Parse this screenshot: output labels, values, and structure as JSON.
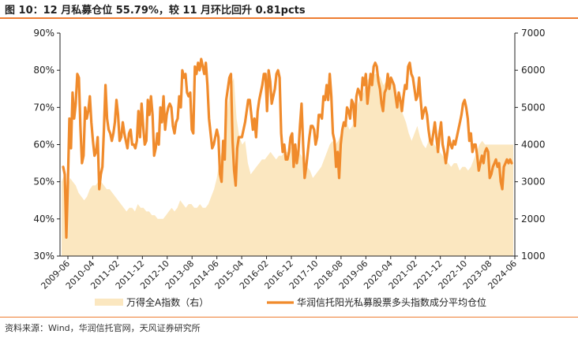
{
  "figure": {
    "title": "图 10：12 月私募仓位 55.79%，较 11 月环比回升 0.81pcts",
    "source": "资料来源：Wind，华润信托官网，天风证券研究所"
  },
  "colors": {
    "accent": "#ed7d31",
    "area_fill": "#fbe7c0",
    "line": "#f08b2c",
    "axis": "#222222"
  },
  "chart_data": {
    "type": "line",
    "x_tick_labels": [
      "2009-06",
      "2010-04",
      "2011-02",
      "2011-12",
      "2012-10",
      "2013-08",
      "2014-06",
      "2015-04",
      "2016-02",
      "2016-12",
      "2017-10",
      "2018-08",
      "2019-06",
      "2020-04",
      "2021-02",
      "2021-12",
      "2022-10",
      "2023-08",
      "2024-06"
    ],
    "left_axis": {
      "ticks": [
        "30%",
        "40%",
        "50%",
        "60%",
        "70%",
        "80%",
        "90%"
      ],
      "range": [
        30,
        90
      ],
      "unit": "%"
    },
    "right_axis": {
      "ticks": [
        "1000",
        "2000",
        "3000",
        "4000",
        "5000",
        "6000",
        "7000"
      ],
      "range": [
        1000,
        7000
      ]
    },
    "grid": false,
    "legend_position": "bottom",
    "series": [
      {
        "name": "万得全A指数（右）",
        "kind": "area",
        "axis": "right",
        "values": [
          3000,
          3200,
          2800,
          3100,
          3000,
          2900,
          2700,
          2600,
          2500,
          2600,
          2800,
          2900,
          2900,
          3000,
          3000,
          2900,
          2800,
          2800,
          2700,
          2600,
          2500,
          2400,
          2300,
          2200,
          2300,
          2300,
          2200,
          2400,
          2300,
          2300,
          2200,
          2200,
          2100,
          2100,
          2000,
          2000,
          2000,
          2100,
          2200,
          2300,
          2200,
          2300,
          2500,
          2400,
          2300,
          2400,
          2400,
          2300,
          2300,
          2400,
          2300,
          2300,
          2400,
          2600,
          2800,
          3100,
          3600,
          3900,
          4400,
          5100,
          5600,
          5800,
          4700,
          4200,
          4000,
          4100,
          3500,
          3200,
          3300,
          3400,
          3500,
          3600,
          3600,
          3700,
          3800,
          3700,
          3600,
          3700,
          3700,
          3800,
          3800,
          3900,
          4000,
          3900,
          3800,
          3700,
          3500,
          3400,
          3300,
          3100,
          3200,
          3300,
          3400,
          3600,
          3800,
          4000,
          4100,
          4000,
          4100,
          4300,
          4500,
          4600,
          4400,
          4500,
          4700,
          5100,
          5300,
          5400,
          5700,
          5800,
          5800,
          5900,
          5900,
          5800,
          5600,
          5700,
          5600,
          5800,
          5500,
          5300,
          5000,
          4800,
          4600,
          4300,
          4100,
          4300,
          4500,
          4200,
          4000,
          3900,
          4100,
          4100,
          4000,
          3900,
          3800,
          3700,
          3600,
          3500,
          3400,
          3500,
          3500,
          3300,
          3400,
          3400,
          3300,
          3400,
          3600,
          3800,
          4000,
          4100,
          4000,
          4000,
          4000,
          4000,
          4000,
          4000,
          4000,
          4000,
          4000,
          4000,
          4000
        ]
      },
      {
        "name": "华润信托阳光私募股票多头指数成分平均仓位",
        "kind": "line",
        "axis": "left",
        "values": [
          54,
          52,
          35,
          50,
          67,
          59,
          74,
          67,
          71,
          79,
          78,
          65,
          55,
          57,
          70,
          67,
          69,
          73,
          66,
          61,
          57,
          58,
          62,
          48,
          52,
          54,
          64,
          76,
          67,
          64,
          63,
          61,
          63,
          66,
          72,
          68,
          61,
          62,
          66,
          63,
          61,
          59,
          63,
          64,
          60,
          60,
          59,
          61,
          69,
          62,
          71,
          65,
          60,
          61,
          72,
          68,
          73,
          68,
          57,
          59,
          63,
          60,
          70,
          66,
          73,
          64,
          68,
          70,
          71,
          70,
          65,
          63,
          66,
          67,
          73,
          70,
          80,
          78,
          79,
          74,
          73,
          74,
          64,
          63,
          81,
          79,
          82,
          80,
          83,
          81,
          79,
          82,
          76,
          67,
          63,
          59,
          60,
          62,
          64,
          62,
          52,
          50,
          61,
          56,
          72,
          75,
          78,
          79,
          61,
          53,
          49,
          59,
          62,
          62,
          62,
          64,
          66,
          69,
          72,
          72,
          68,
          64,
          67,
          62,
          69,
          72,
          74,
          76,
          79,
          79,
          69,
          80,
          77,
          71,
          73,
          75,
          79,
          80,
          78,
          63,
          58,
          60,
          56,
          56,
          58,
          62,
          63,
          54,
          60,
          55,
          58,
          65,
          71,
          60,
          51,
          54,
          58,
          62,
          65,
          65,
          64,
          60,
          62,
          68,
          68,
          67,
          73,
          72,
          76,
          72,
          79,
          73,
          63,
          61,
          54,
          58,
          51,
          60,
          64,
          66,
          65,
          70,
          69,
          67,
          72,
          71,
          65,
          73,
          75,
          74,
          72,
          78,
          76,
          79,
          71,
          75,
          79,
          76,
          81,
          82,
          81,
          77,
          75,
          71,
          69,
          74,
          75,
          79,
          75,
          78,
          77,
          76,
          73,
          70,
          74,
          72,
          69,
          73,
          76,
          75,
          81,
          82,
          79,
          78,
          75,
          72,
          73,
          78,
          72,
          67,
          69,
          70,
          68,
          64,
          61,
          60,
          63,
          66,
          62,
          58,
          63,
          66,
          60,
          58,
          55,
          58,
          62,
          60,
          59,
          61,
          60,
          62,
          64,
          66,
          68,
          71,
          72,
          70,
          67,
          61,
          63,
          58,
          60,
          60,
          57,
          53,
          55,
          57,
          55,
          58,
          59,
          58,
          51,
          52,
          54,
          55,
          56,
          54,
          55,
          50,
          48,
          54,
          55,
          56,
          55,
          56,
          55
        ]
      }
    ]
  }
}
